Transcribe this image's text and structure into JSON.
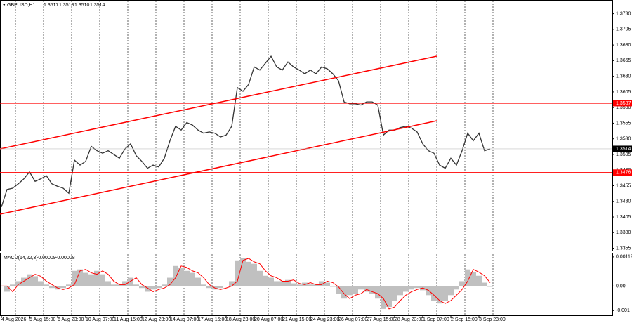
{
  "chart_data": [
    {
      "type": "line",
      "title": "GBPUSD,H1",
      "quote": [
        "1.3517",
        "1.3518",
        "1.3510",
        "1.3514"
      ],
      "categories": [
        "4 Aug 2026",
        null,
        null,
        null,
        null,
        "5 Aug 15:00",
        null,
        null,
        null,
        null,
        "6 Aug 23:00",
        null,
        null,
        null,
        null,
        "10 Aug 07:00",
        null,
        null,
        null,
        null,
        "11 Aug 15:00",
        null,
        null,
        null,
        null,
        "12 Aug 23:00",
        null,
        null,
        null,
        null,
        "14 Aug 07:00",
        null,
        null,
        null,
        null,
        "17 Aug 15:00",
        null,
        null,
        null,
        null,
        "18 Aug 23:00",
        null,
        null,
        null,
        null,
        "20 Aug 07:00",
        null,
        null,
        null,
        null,
        "21 Aug 15:00",
        null,
        null,
        null,
        null,
        "24 Aug 23:00",
        null,
        null,
        null,
        null,
        "26 Aug 07:00",
        null,
        null,
        null,
        null,
        "27 Aug 15:00",
        null,
        null,
        null,
        null,
        "28 Aug 23:00",
        null,
        null,
        null,
        null,
        "1 Sep 07:00",
        null,
        null,
        null,
        null,
        "2 Sep 15:00",
        null,
        null,
        null,
        null,
        "3 Sep 23:00",
        null,
        null
      ],
      "values": [
        1.3421,
        1.3449,
        1.3451,
        1.3458,
        1.3466,
        1.3477,
        1.3462,
        1.3466,
        1.3471,
        1.3458,
        1.3454,
        1.3451,
        1.3443,
        1.3496,
        1.3488,
        1.3494,
        1.3518,
        1.3511,
        1.3507,
        1.3511,
        1.3505,
        1.3499,
        1.3514,
        1.3522,
        1.3503,
        1.3494,
        1.3483,
        1.3488,
        1.3485,
        1.3499,
        1.3527,
        1.355,
        1.3544,
        1.3556,
        1.3552,
        1.3544,
        1.3539,
        1.3541,
        1.3539,
        1.3533,
        1.3536,
        1.355,
        1.3612,
        1.3606,
        1.3617,
        1.3645,
        1.364,
        1.3651,
        1.3662,
        1.3645,
        1.364,
        1.3653,
        1.3645,
        1.364,
        1.3634,
        1.364,
        1.3634,
        1.3645,
        1.3642,
        1.3634,
        1.3623,
        1.3589,
        1.3586,
        1.3586,
        1.3584,
        1.3589,
        1.3589,
        1.3584,
        1.3536,
        1.3544,
        1.3544,
        1.3548,
        1.355,
        1.3547,
        1.3541,
        1.3522,
        1.3511,
        1.3507,
        1.3488,
        1.3483,
        1.3499,
        1.3488,
        1.3511,
        1.3539,
        1.3527,
        1.3539,
        1.3511,
        1.3514
      ],
      "color": "#333333",
      "ylim": [
        1.335,
        1.3752
      ],
      "yticks": [
        {
          "value": 1.373,
          "label": "1.3730"
        },
        1.3705,
        {
          "value": 1.368,
          "label": "1.3680"
        },
        1.3655,
        {
          "value": 1.363,
          "label": "1.3630"
        },
        1.3605,
        {
          "value": 1.358,
          "label": "1.3580"
        },
        1.3555,
        {
          "value": 1.353,
          "label": "1.3530"
        },
        1.3505,
        {
          "value": 1.348,
          "label": "1.3480"
        },
        1.3455,
        {
          "value": 1.343,
          "label": "1.3430"
        },
        1.3405,
        {
          "value": 1.338,
          "label": "1.3380"
        },
        1.3355
      ],
      "grid": true,
      "levels": [
        {
          "value": 1.3587,
          "color": "#ff0000"
        },
        {
          "value": 1.3476,
          "color": "#ff0000"
        }
      ],
      "current_price": 1.3514
    },
    {
      "type": "bar",
      "title": "MACD(14,22,3)",
      "indicator_values": [
        -9e-05,
        -8e-05
      ],
      "values": [
        0,
        -0.00023,
        6e-05,
        0.0002,
        0.00034,
        0.00048,
        0.0004,
        0.0002,
        6e-05,
        -8e-05,
        -0.00014,
        -8e-05,
        6e-05,
        0.00062,
        0.00068,
        0.00054,
        0.00048,
        0.00062,
        0.00048,
        0.0002,
        6e-05,
        6e-05,
        0.0002,
        0.00034,
        6e-05,
        -8e-05,
        -0.00023,
        -0.00014,
        -8e-05,
        6e-05,
        0.00034,
        0.00082,
        0.00076,
        0.00062,
        0.00054,
        0.00034,
        6e-05,
        -8e-05,
        -0.00014,
        -8e-05,
        0,
        0.0002,
        0.00105,
        0.00113,
        0.00099,
        0.00091,
        0.00062,
        0.00042,
        0.00034,
        0.0002,
        0.0002,
        0.00025,
        0.00011,
        6e-05,
        0.00014,
        6e-05,
        6e-05,
        0.0002,
        0.00014,
        -3e-05,
        -0.00031,
        -0.00051,
        -0.00037,
        -0.00031,
        -0.00014,
        -0.00023,
        -0.00031,
        -0.00051,
        -0.00093,
        -0.00085,
        -0.00059,
        -0.00037,
        -0.00023,
        -0.00014,
        -8e-05,
        -0.00017,
        -0.00037,
        -0.00059,
        -0.00071,
        -0.00059,
        -0.00037,
        -0.00014,
        0.0002,
        0.00068,
        0.00057,
        0.00042,
        0.00014,
        -3e-05
      ],
      "color": "#c0c0c0",
      "signal": [
        0,
        0,
        -0.00023,
        6e-05,
        0.0002,
        0.00034,
        0.00048,
        0.0004,
        0.0002,
        6e-05,
        -8e-05,
        -0.00014,
        -8e-05,
        6e-05,
        0.00062,
        0.00068,
        0.00054,
        0.00048,
        0.00062,
        0.00048,
        0.0002,
        6e-05,
        6e-05,
        0.0002,
        0.00034,
        6e-05,
        -8e-05,
        -0.00023,
        -0.00014,
        -8e-05,
        6e-05,
        0.00034,
        0.00082,
        0.00076,
        0.00062,
        0.00054,
        0.00034,
        6e-05,
        -8e-05,
        -0.00014,
        -8e-05,
        0,
        0.0002,
        0.00105,
        0.00113,
        0.00099,
        0.00091,
        0.00062,
        0.00042,
        0.00034,
        0.0002,
        0.0002,
        0.00025,
        0.00011,
        6e-05,
        0.00014,
        6e-05,
        6e-05,
        0.0002,
        0.00014,
        -3e-05,
        -0.00031,
        -0.00051,
        -0.00037,
        -0.00031,
        -0.00014,
        -0.00023,
        -0.00031,
        -0.00051,
        -0.00093,
        -0.00085,
        -0.00059,
        -0.00037,
        -0.00023,
        -0.00014,
        -8e-05,
        -0.00017,
        -0.00037,
        -0.00059,
        -0.00071,
        -0.00059,
        -0.00037,
        -0.00014,
        0.0002,
        0.00068,
        0.00057,
        0.00042,
        0.00014
      ],
      "signal_color": "#ff0000",
      "ylim": [
        -0.00122,
        0.00133
      ],
      "yticks": [
        0.00119,
        {
          "value": 0,
          "label": "0.00"
        },
        -0.001
      ]
    }
  ]
}
